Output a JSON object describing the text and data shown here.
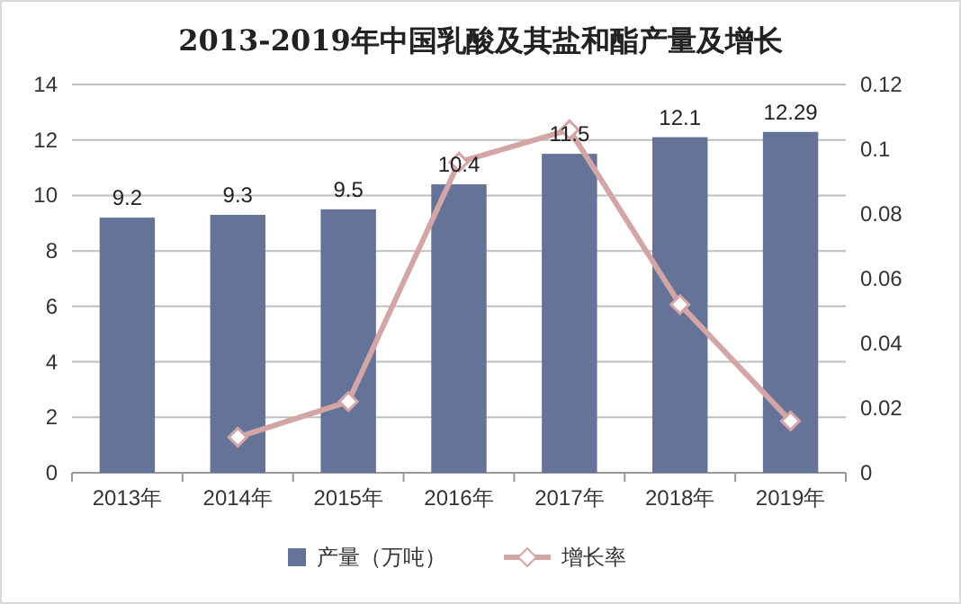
{
  "chart_data": {
    "type": "bar",
    "title": "2013-2019年中国乳酸及其盐和酯产量及增长",
    "categories": [
      "2013年",
      "2014年",
      "2015年",
      "2016年",
      "2017年",
      "2018年",
      "2019年"
    ],
    "series": [
      {
        "name": "产量（万吨）",
        "color": "#667399",
        "values": [
          9.2,
          9.3,
          9.5,
          10.4,
          11.5,
          12.1,
          12.29
        ],
        "value_labels": [
          "9.2",
          "9.3",
          "9.5",
          "10.4",
          "11.5",
          "12.1",
          "12.29"
        ]
      },
      {
        "name": "增长率",
        "type": "line",
        "axis": "y2",
        "color": "#d4a5a5",
        "marker": "diamond",
        "values": [
          null,
          0.011,
          0.022,
          0.096,
          0.106,
          0.052,
          0.016
        ]
      }
    ],
    "ylim": [
      0,
      14
    ],
    "yticks": [
      0,
      2,
      4,
      6,
      8,
      10,
      12,
      14
    ],
    "y2lim": [
      0,
      0.12
    ],
    "y2ticks": [
      0,
      0.02,
      0.04,
      0.06,
      0.08,
      0.1,
      0.12
    ],
    "grid": "y",
    "legend": "bottom"
  }
}
